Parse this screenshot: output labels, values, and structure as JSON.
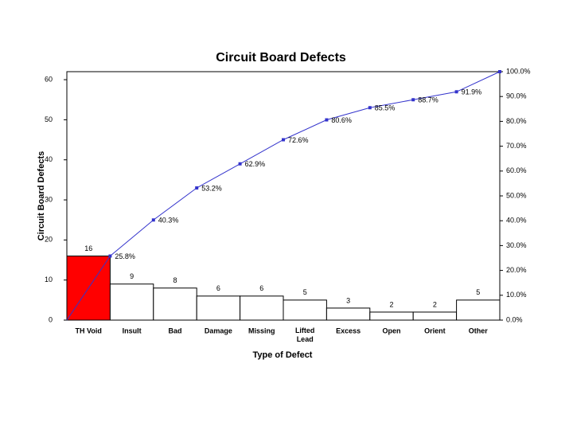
{
  "chart_data": {
    "type": "pareto",
    "title": "Circuit Board Defects",
    "x_label": "Type of Defect",
    "y_label": "Circuit Board Defects",
    "categories": [
      "TH Void",
      "Insult",
      "Bad",
      "Damage",
      "Missing",
      "Lifted\nLead",
      "Excess",
      "Open",
      "Orient",
      "Other"
    ],
    "series": [
      {
        "type": "bar",
        "values": [
          16,
          9,
          8,
          6,
          6,
          5,
          3,
          2,
          2,
          5
        ],
        "colors": [
          "#ff0000",
          "#ffffff",
          "#ffffff",
          "#ffffff",
          "#ffffff",
          "#ffffff",
          "#ffffff",
          "#ffffff",
          "#ffffff",
          "#ffffff"
        ]
      },
      {
        "type": "line",
        "axis": "y2",
        "color": "#3333cc",
        "values": [
          25.8,
          40.3,
          53.2,
          62.9,
          72.6,
          80.6,
          85.5,
          88.7,
          91.9,
          100.0
        ],
        "value_labels": [
          "25.8%",
          "40.3%",
          "53.2%",
          "62.9%",
          "72.6%",
          "80.6%",
          "85.5%",
          "88.7%",
          "91.9%",
          null
        ]
      }
    ],
    "ylim": [
      0,
      62
    ],
    "yticks": [
      0,
      10,
      20,
      30,
      40,
      50,
      60
    ],
    "y2lim": [
      0,
      100
    ],
    "y2ticks": [
      {
        "value": 0,
        "label": "0.0%"
      },
      {
        "value": 10,
        "label": "10.0%"
      },
      {
        "value": 20,
        "label": "20.0%"
      },
      {
        "value": 30,
        "label": "30.0%"
      },
      {
        "value": 40,
        "label": "40.0%"
      },
      {
        "value": 50,
        "label": "50.0%"
      },
      {
        "value": 60,
        "label": "60.0%"
      },
      {
        "value": 70,
        "label": "70.0%"
      },
      {
        "value": 80,
        "label": "80.0%"
      },
      {
        "value": 90,
        "label": "90.0%"
      },
      {
        "value": 100,
        "label": "100.0%"
      }
    ]
  }
}
